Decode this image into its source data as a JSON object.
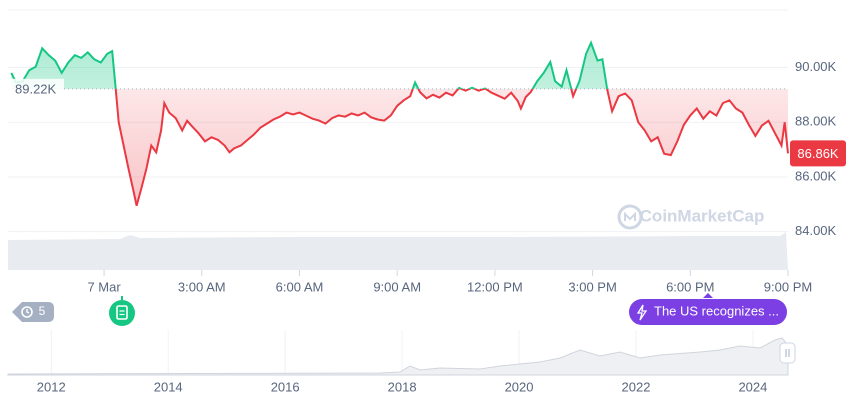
{
  "chart_data": {
    "type": "line",
    "x": [
      -2.85,
      -2.7,
      -2.5,
      -2.3,
      -2.1,
      -1.9,
      -1.7,
      -1.5,
      -1.3,
      -1.1,
      -0.9,
      -0.7,
      -0.5,
      -0.3,
      -0.1,
      0.1,
      0.25,
      0.35,
      0.45,
      0.6,
      0.75,
      0.9,
      1.0,
      1.15,
      1.3,
      1.45,
      1.6,
      1.75,
      1.85,
      2.0,
      2.2,
      2.4,
      2.55,
      2.7,
      2.9,
      3.1,
      3.3,
      3.5,
      3.7,
      3.85,
      4.0,
      4.2,
      4.4,
      4.6,
      4.8,
      5.0,
      5.2,
      5.4,
      5.6,
      5.8,
      6.0,
      6.2,
      6.4,
      6.6,
      6.8,
      7.0,
      7.2,
      7.4,
      7.6,
      7.8,
      8.0,
      8.2,
      8.4,
      8.6,
      8.8,
      9.0,
      9.2,
      9.4,
      9.55,
      9.7,
      9.9,
      10.1,
      10.3,
      10.5,
      10.7,
      10.9,
      11.1,
      11.3,
      11.5,
      11.7,
      11.9,
      12.1,
      12.3,
      12.5,
      12.7,
      12.8,
      12.95,
      13.1,
      13.3,
      13.5,
      13.7,
      13.85,
      14.05,
      14.2,
      14.4,
      14.6,
      14.8,
      14.95,
      15.15,
      15.3,
      15.45,
      15.6,
      15.8,
      16.0,
      16.2,
      16.4,
      16.6,
      16.8,
      17.0,
      17.2,
      17.4,
      17.6,
      17.8,
      18.0,
      18.2,
      18.4,
      18.6,
      18.8,
      19.0,
      19.2,
      19.4,
      19.6,
      19.8,
      20.0,
      20.2,
      20.4,
      20.6,
      20.8,
      20.9,
      21.0
    ],
    "values": [
      89800,
      89450,
      89500,
      89900,
      90030,
      90700,
      90450,
      90250,
      89800,
      90180,
      90450,
      90350,
      90550,
      90300,
      90180,
      90500,
      90600,
      89300,
      88000,
      87150,
      86300,
      85500,
      84950,
      85600,
      86300,
      87150,
      86900,
      87700,
      88700,
      88350,
      88150,
      87700,
      88050,
      87850,
      87600,
      87300,
      87450,
      87350,
      87150,
      86900,
      87050,
      87150,
      87350,
      87550,
      87800,
      87950,
      88100,
      88200,
      88350,
      88280,
      88350,
      88240,
      88130,
      88060,
      87950,
      88150,
      88250,
      88200,
      88320,
      88250,
      88350,
      88180,
      88100,
      88060,
      88240,
      88600,
      88800,
      88950,
      89450,
      89100,
      88870,
      89000,
      88900,
      89080,
      88980,
      89250,
      89150,
      89260,
      89150,
      89230,
      89080,
      88970,
      88860,
      89080,
      88780,
      88500,
      88920,
      89100,
      89500,
      89800,
      90200,
      89500,
      89300,
      89900,
      88950,
      89520,
      90500,
      90900,
      90250,
      90300,
      89200,
      88400,
      88950,
      89050,
      88800,
      88000,
      87700,
      87300,
      87450,
      86850,
      86800,
      87300,
      87900,
      88250,
      88500,
      88130,
      88400,
      88240,
      88700,
      88800,
      88500,
      88350,
      87900,
      87500,
      87880,
      88050,
      87600,
      87150,
      88000,
      86860
    ],
    "color_above": "#16c784",
    "color_below": "#ea3943",
    "baseline": {
      "value": 89220,
      "label": "89.22K"
    },
    "current_price": {
      "value": 86860,
      "label": "86.86K"
    },
    "xlim": [
      -2.95,
      21
    ],
    "xticks": [
      {
        "value": 0,
        "label": "7 Mar"
      },
      {
        "value": 3,
        "label": "3:00 AM"
      },
      {
        "value": 6,
        "label": "6:00 AM"
      },
      {
        "value": 9,
        "label": "9:00 AM"
      },
      {
        "value": 12,
        "label": "12:00 PM"
      },
      {
        "value": 15,
        "label": "3:00 PM"
      },
      {
        "value": 18,
        "label": "6:00 PM"
      },
      {
        "value": 21,
        "label": "9:00 PM"
      }
    ],
    "ylim": [
      82600,
      92100
    ],
    "yticks": [
      {
        "value": 84000,
        "label": "84.00K"
      },
      {
        "value": 86000,
        "label": "86.00K"
      },
      {
        "value": 88000,
        "label": "88.00K"
      },
      {
        "value": 90000,
        "label": "90.00K"
      }
    ],
    "grid": true,
    "watermark": "CoinMarketCap"
  },
  "navigator": {
    "xlim": [
      2011.26,
      2024.6
    ],
    "xticks": [
      2012,
      2014,
      2016,
      2018,
      2020,
      2022,
      2024
    ]
  },
  "events": {
    "history_count": "5",
    "news": "The US recognizes ..."
  }
}
